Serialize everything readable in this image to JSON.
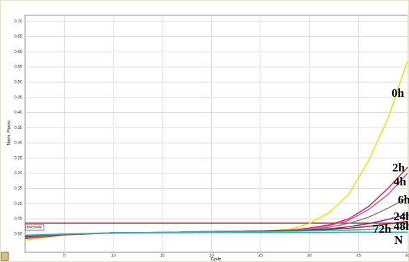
{
  "chart_data": {
    "type": "line",
    "x_label": "Cycle",
    "y_label": "Norm. Fluoro.",
    "x": [
      1,
      5,
      10,
      15,
      20,
      25,
      28,
      30,
      32,
      34,
      36,
      38,
      40
    ],
    "series": [
      {
        "name": "0h",
        "color": "#e6e600",
        "values": [
          -0.02,
          -0.003,
          0.004,
          0.004,
          0.008,
          0.01,
          0.016,
          0.035,
          0.07,
          0.13,
          0.24,
          0.38,
          0.57
        ]
      },
      {
        "name": "2h",
        "color": "#d83030",
        "values": [
          -0.015,
          -0.003,
          0.004,
          0.005,
          0.008,
          0.01,
          0.013,
          0.02,
          0.03,
          0.05,
          0.09,
          0.15,
          0.22
        ]
      },
      {
        "name": "4h",
        "color": "#d848d8",
        "values": [
          -0.012,
          -0.002,
          0.004,
          0.005,
          0.008,
          0.01,
          0.012,
          0.018,
          0.027,
          0.045,
          0.08,
          0.13,
          0.2
        ]
      },
      {
        "name": "6h",
        "color": "#808080",
        "values": [
          -0.01,
          -0.002,
          0.004,
          0.005,
          0.008,
          0.01,
          0.012,
          0.016,
          0.022,
          0.035,
          0.055,
          0.085,
          0.12
        ]
      },
      {
        "name": "24h",
        "color": "#7030a0",
        "values": [
          -0.008,
          -0.002,
          0.004,
          0.005,
          0.008,
          0.01,
          0.011,
          0.013,
          0.017,
          0.024,
          0.034,
          0.048,
          0.065
        ]
      },
      {
        "name": "48h",
        "color": "#a02020",
        "values": [
          -0.006,
          -0.001,
          0.004,
          0.005,
          0.008,
          0.009,
          0.01,
          0.012,
          0.015,
          0.019,
          0.025,
          0.033,
          0.042
        ]
      },
      {
        "name": "72h",
        "color": "#40c090",
        "values": [
          -0.004,
          0.0,
          0.004,
          0.005,
          0.007,
          0.008,
          0.009,
          0.01,
          0.011,
          0.013,
          0.015,
          0.018,
          0.022
        ]
      },
      {
        "name": "N",
        "color": "#20b8c8",
        "values": [
          -0.005,
          0.0,
          0.003,
          0.004,
          0.005,
          0.005,
          0.005,
          0.005,
          0.005,
          0.006,
          0.006,
          0.006,
          0.006
        ]
      }
    ],
    "threshold": {
      "label": "threshold",
      "value": 0.036,
      "color": "#c00000"
    },
    "xlim": [
      1,
      40
    ],
    "ylim": [
      -0.06,
      0.72
    ],
    "xticks": [
      5,
      10,
      15,
      20,
      25,
      30,
      35,
      40
    ],
    "yticks": [
      {
        "value": 0,
        "label": "0.00"
      },
      {
        "value": 0.05,
        "label": "0.05"
      },
      {
        "value": 0.1,
        "label": "0.10"
      },
      {
        "value": 0.15,
        "label": "0.15"
      },
      {
        "value": 0.2,
        "label": "0.20"
      },
      {
        "value": 0.25,
        "label": "0.25"
      },
      {
        "value": 0.3,
        "label": "0.30"
      },
      {
        "value": 0.35,
        "label": "0.35"
      },
      {
        "value": 0.4,
        "label": "0.40"
      },
      {
        "value": 0.45,
        "label": "0.45"
      },
      {
        "value": 0.5,
        "label": "0.50"
      },
      {
        "value": 0.55,
        "label": "0.55"
      },
      {
        "value": 0.6,
        "label": "0.60"
      },
      {
        "value": 0.65,
        "label": "0.65"
      },
      {
        "value": 0.7,
        "label": "0.70"
      }
    ],
    "grid": true
  }
}
